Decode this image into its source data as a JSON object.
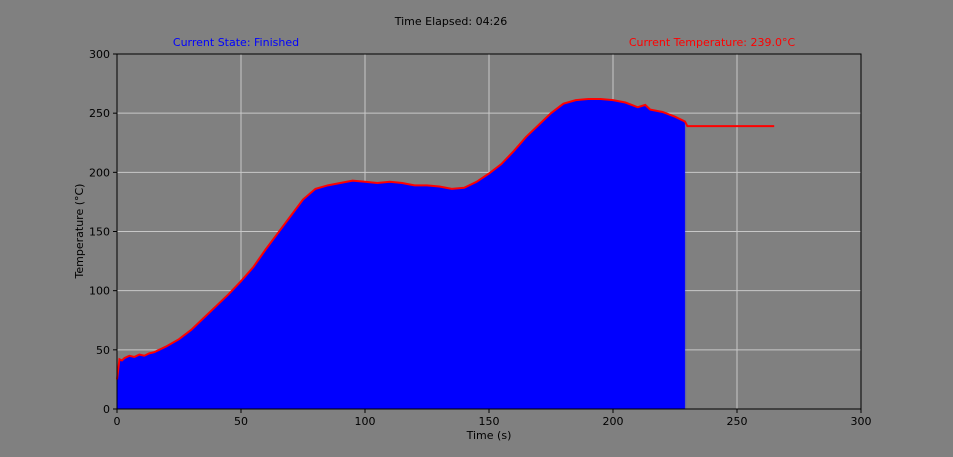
{
  "header": {
    "elapsed": "Time Elapsed: 04:26",
    "state": "Current State: Finished",
    "temperature": "Current Temperature: 239.0°C"
  },
  "colors": {
    "background": "#808080",
    "fill": "#0000ff",
    "line": "#ff0000",
    "state_text": "#0000ff",
    "temp_text": "#ff0000",
    "grid": "#c8c8c8"
  },
  "chart_data": {
    "type": "area",
    "xlabel": "Time (s)",
    "ylabel": "Temperature (°C)",
    "xlim": [
      0,
      300
    ],
    "ylim": [
      0,
      300
    ],
    "xticks": [
      0,
      50,
      100,
      150,
      200,
      250,
      300
    ],
    "yticks": [
      0,
      50,
      100,
      150,
      200,
      250,
      300
    ],
    "grid": true,
    "fill_until": 229,
    "series": [
      {
        "x": [
          0,
          1,
          2,
          3,
          5,
          7,
          9,
          11,
          13,
          15,
          17,
          20,
          25,
          30,
          35,
          40,
          45,
          50,
          55,
          60,
          65,
          70,
          75,
          80,
          85,
          90,
          95,
          100,
          105,
          110,
          115,
          120,
          125,
          130,
          135,
          140,
          145,
          150,
          155,
          160,
          165,
          170,
          175,
          180,
          185,
          190,
          195,
          200,
          205,
          210,
          213,
          215,
          220,
          225,
          229,
          230,
          240,
          250,
          260,
          265
        ],
        "y": [
          25,
          42,
          41,
          43,
          45,
          44,
          46,
          45,
          47,
          48,
          50,
          53,
          59,
          67,
          77,
          87,
          97,
          108,
          120,
          135,
          149,
          163,
          177,
          186,
          189,
          191,
          193,
          192,
          191,
          192,
          191,
          189,
          189,
          188,
          186,
          187,
          192,
          199,
          207,
          218,
          230,
          240,
          250,
          258,
          261,
          262,
          262,
          261,
          259,
          255,
          257,
          253,
          251,
          247,
          243,
          239,
          239,
          239,
          239,
          239
        ]
      }
    ]
  }
}
